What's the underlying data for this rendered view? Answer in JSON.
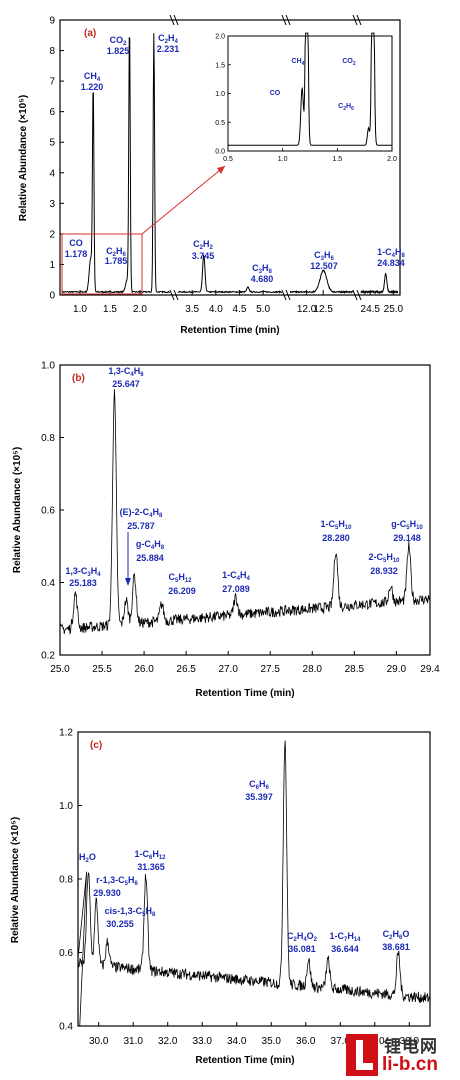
{
  "figure": {
    "y_axis_label": "Relative Abundance (×10⁵)",
    "x_axis_label": "Retention Time (min)"
  },
  "watermark": {
    "cn": "锂电网",
    "url": "li-b.cn"
  },
  "chart_data": [
    {
      "type": "line",
      "panel": "(a)",
      "xlabel": "Retention Time (min)",
      "ylabel": "Relative Abundance (×10⁵)",
      "ylim": [
        0,
        9
      ],
      "yticks": [
        0,
        1,
        2,
        3,
        4,
        5,
        6,
        7,
        8,
        9
      ],
      "broken_x_axis": true,
      "segments": [
        {
          "xlim": [
            0.7,
            2.5
          ],
          "xticks": [
            "1.0",
            "1.5",
            "2.0"
          ]
        },
        {
          "xlim": [
            3.2,
            5.4
          ],
          "xticks": [
            "3.5",
            "4.0",
            "4.5",
            "5.0"
          ]
        },
        {
          "xlim": [
            11.5,
            13.4
          ],
          "xticks": [
            "12.0",
            "12.5"
          ]
        },
        {
          "xlim": [
            24.3,
            25.1
          ],
          "xticks": [
            "24.5",
            "25.0"
          ]
        }
      ],
      "peaks": [
        {
          "name": "CO",
          "x": 1.178,
          "y": 1.1
        },
        {
          "name": "CH4",
          "x": 1.22,
          "y": 6.6
        },
        {
          "name": "C2H6",
          "x": 1.785,
          "y": 0.4
        },
        {
          "name": "CO2",
          "x": 1.825,
          "y": 8.7
        },
        {
          "name": "C2H4",
          "x": 2.231,
          "y": 8.5
        },
        {
          "name": "C2H2",
          "x": 3.745,
          "y": 1.2
        },
        {
          "name": "C3H8",
          "x": 4.68,
          "y": 0.15
        },
        {
          "name": "C3H6",
          "x": 12.507,
          "y": 0.7
        },
        {
          "name": "1-C4H8",
          "x": 24.834,
          "y": 0.6
        }
      ],
      "inset": {
        "xlim": [
          0.5,
          2.0
        ],
        "ylim": [
          0,
          2.0
        ],
        "xticks": [
          "0.5",
          "1.0",
          "1.5",
          "2.0"
        ],
        "yticks": [
          "0.0",
          "0.5",
          "1.0",
          "1.5",
          "2.0"
        ],
        "labels": [
          "CO",
          "CH4",
          "C2H6",
          "CO2"
        ]
      }
    },
    {
      "type": "line",
      "panel": "(b)",
      "xlabel": "Retention Time (min)",
      "ylabel": "Relative Abundance (×10⁵)",
      "xlim": [
        25.0,
        29.4
      ],
      "ylim": [
        0.2,
        1.0
      ],
      "xticks": [
        "25.0",
        "25.5",
        "26.0",
        "26.5",
        "27.0",
        "27.5",
        "28.0",
        "28.5",
        "29.0",
        "29.4"
      ],
      "yticks": [
        "0.2",
        "0.4",
        "0.6",
        "0.8",
        "1.0"
      ],
      "baseline": {
        "start": 0.27,
        "end": 0.355
      },
      "peaks": [
        {
          "name": "1,3-C3H4",
          "x": 25.183,
          "y": 0.37
        },
        {
          "name": "1,3-C4H6",
          "x": 25.647,
          "y": 0.92
        },
        {
          "name": "(E)-2-C4H8",
          "x": 25.787,
          "y": 0.35
        },
        {
          "name": "g-C4H8",
          "x": 25.884,
          "y": 0.42
        },
        {
          "name": "C5H12",
          "x": 26.209,
          "y": 0.34
        },
        {
          "name": "1-C4H4",
          "x": 27.089,
          "y": 0.36
        },
        {
          "name": "1-C5H10",
          "x": 28.28,
          "y": 0.49
        },
        {
          "name": "2-C5H10",
          "x": 28.932,
          "y": 0.39
        },
        {
          "name": "g-C5H10",
          "x": 29.148,
          "y": 0.5
        }
      ]
    },
    {
      "type": "line",
      "panel": "(c)",
      "xlabel": "Retention Time (min)",
      "ylabel": "Relative Abundance (×10⁵)",
      "xlim": [
        29.4,
        39.6
      ],
      "ylim": [
        0.4,
        1.2
      ],
      "xticks": [
        "30.0",
        "31.0",
        "32.0",
        "33.0",
        "34.0",
        "35.0",
        "36.0",
        "37.0",
        "38.0",
        "39.0"
      ],
      "yticks": [
        "0.4",
        "0.6",
        "0.8",
        "1.0",
        "1.2"
      ],
      "baseline": {
        "start": 0.57,
        "end": 0.475
      },
      "peaks": [
        {
          "name": "H2O",
          "x": 29.7,
          "y": 0.82
        },
        {
          "name": "r-1,3-C5H6",
          "x": 29.93,
          "y": 0.74
        },
        {
          "name": "cis-1,3-C5H8",
          "x": 30.255,
          "y": 0.63
        },
        {
          "name": "1-C6H12",
          "x": 31.365,
          "y": 0.81
        },
        {
          "name": "C6H6",
          "x": 35.397,
          "y": 1.18
        },
        {
          "name": "C2H4O2",
          "x": 36.081,
          "y": 0.58
        },
        {
          "name": "1-C7H14",
          "x": 36.644,
          "y": 0.58
        },
        {
          "name": "C2H6O",
          "x": 38.681,
          "y": 0.6
        }
      ]
    }
  ]
}
